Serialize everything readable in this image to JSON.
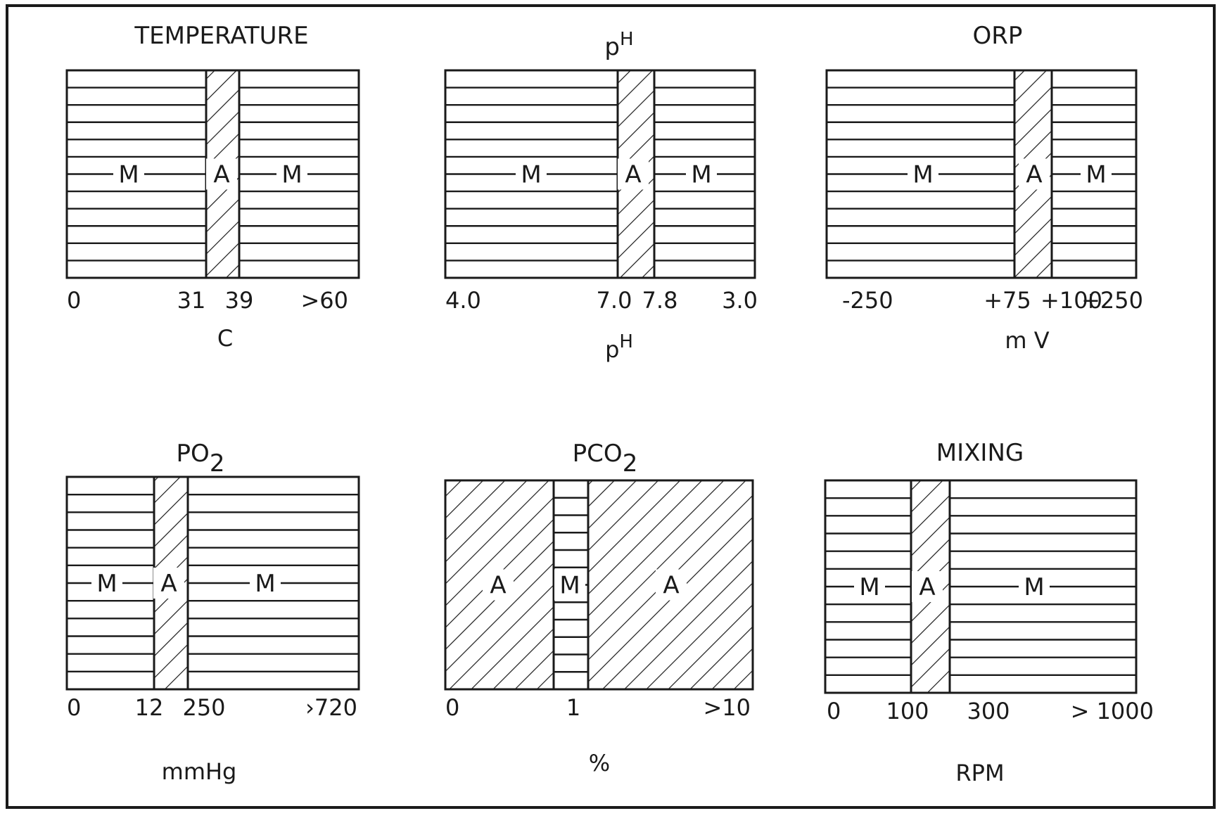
{
  "panels": [
    {
      "id": "temperature",
      "title": "TEMPERATURE",
      "unit_label": "C",
      "ticks": [
        "0",
        "31",
        "39",
        ">60"
      ],
      "regions": [
        {
          "kind": "M",
          "label": "M"
        },
        {
          "kind": "A",
          "label": "A"
        },
        {
          "kind": "M",
          "label": "M"
        }
      ]
    },
    {
      "id": "ph",
      "title": "p",
      "title_sup": "H",
      "unit_label": "p",
      "unit_sup": "H",
      "ticks": [
        "4.0",
        "7.0",
        "7.8",
        "3.0"
      ],
      "regions": [
        {
          "kind": "M",
          "label": "M"
        },
        {
          "kind": "A",
          "label": "A"
        },
        {
          "kind": "M",
          "label": "M"
        }
      ]
    },
    {
      "id": "orp",
      "title": "ORP",
      "unit_label": "m V",
      "ticks": [
        "-250",
        "+75",
        "+100",
        "+250"
      ],
      "regions": [
        {
          "kind": "M",
          "label": "M"
        },
        {
          "kind": "A",
          "label": "A"
        },
        {
          "kind": "M",
          "label": "M"
        }
      ]
    },
    {
      "id": "po2",
      "title": "PO",
      "title_sub": "2",
      "unit_label": "mmHg",
      "ticks": [
        "0",
        "12",
        "250",
        "›720"
      ],
      "regions": [
        {
          "kind": "M",
          "label": "M"
        },
        {
          "kind": "A",
          "label": "A"
        },
        {
          "kind": "M",
          "label": "M"
        }
      ]
    },
    {
      "id": "pco2",
      "title": "PCO",
      "title_sub": "2",
      "unit_label": "%",
      "ticks": [
        "0",
        "1",
        ">10"
      ],
      "regions": [
        {
          "kind": "A",
          "label": "A"
        },
        {
          "kind": "M",
          "label": "M"
        },
        {
          "kind": "A",
          "label": "A"
        }
      ]
    },
    {
      "id": "mixing",
      "title": "MIXING",
      "unit_label": "RPM",
      "ticks": [
        "0",
        "100",
        "300",
        "> 1000"
      ],
      "regions": [
        {
          "kind": "M",
          "label": "M"
        },
        {
          "kind": "A",
          "label": "A"
        },
        {
          "kind": "M",
          "label": "M"
        }
      ]
    }
  ],
  "colors": {
    "ink": "#1a1a1a",
    "paper": "#ffffff"
  }
}
